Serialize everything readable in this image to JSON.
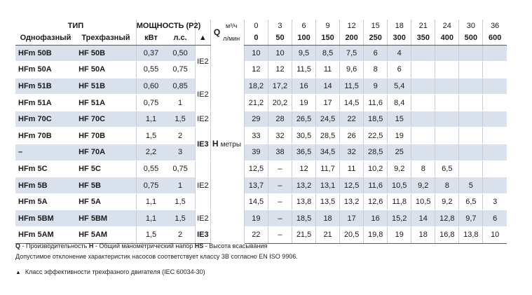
{
  "header": {
    "tip": "ТИП",
    "power": "МОЩНОСТЬ (P2)",
    "single_phase": "Однофазный",
    "three_phase": "Трехфазный",
    "kw": "кВт",
    "hp": "л.с.",
    "triangle": "▲",
    "q_letter": "Q",
    "q_unit_top": "м³/ч",
    "q_unit_bottom": "л/мин",
    "flow_m3h": [
      "0",
      "3",
      "6",
      "9",
      "12",
      "15",
      "18",
      "21",
      "24",
      "30",
      "36"
    ],
    "flow_lmin": [
      "0",
      "50",
      "100",
      "150",
      "200",
      "250",
      "300",
      "350",
      "400",
      "500",
      "600"
    ]
  },
  "h_label": {
    "letter": "H",
    "unit": "метры"
  },
  "rows": [
    {
      "single": "HFm 50B",
      "three": "HF 50B",
      "kw": "0,37",
      "hp": "0,50",
      "ie": "IE2",
      "ie_span": 2,
      "ie_bold": false,
      "values": [
        "10",
        "10",
        "9,5",
        "8,5",
        "7,5",
        "6",
        "4",
        "",
        "",
        "",
        ""
      ],
      "shaded": true
    },
    {
      "single": "HFm 50A",
      "three": "HF 50A",
      "kw": "0,55",
      "hp": "0,75",
      "ie": null,
      "values": [
        "12",
        "12",
        "11,5",
        "11",
        "9,6",
        "8",
        "6",
        "",
        "",
        "",
        ""
      ],
      "shaded": false
    },
    {
      "single": "HFm 51B",
      "three": "HF 51B",
      "kw": "0,60",
      "hp": "0,85",
      "ie": "IE2",
      "ie_span": 2,
      "ie_bold": false,
      "values": [
        "18,2",
        "17,2",
        "16",
        "14",
        "11,5",
        "9",
        "5,4",
        "",
        "",
        "",
        ""
      ],
      "shaded": true
    },
    {
      "single": "HFm 51A",
      "three": "HF 51A",
      "kw": "0,75",
      "hp": "1",
      "ie": null,
      "values": [
        "21,2",
        "20,2",
        "19",
        "17",
        "14,5",
        "11,6",
        "8,4",
        "",
        "",
        "",
        ""
      ],
      "shaded": false
    },
    {
      "single": "HFm 70C",
      "three": "HF 70C",
      "kw": "1,1",
      "hp": "1,5",
      "ie": "IE2",
      "ie_span": 1,
      "ie_bold": false,
      "values": [
        "29",
        "28",
        "26,5",
        "24,5",
        "22",
        "18,5",
        "15",
        "",
        "",
        "",
        ""
      ],
      "shaded": true
    },
    {
      "single": "HFm 70B",
      "three": "HF 70B",
      "kw": "1,5",
      "hp": "2",
      "ie": "IE3",
      "ie_span": 2,
      "ie_bold": true,
      "values": [
        "33",
        "32",
        "30,5",
        "28,5",
        "26",
        "22,5",
        "19",
        "",
        "",
        "",
        ""
      ],
      "shaded": false
    },
    {
      "single": "–",
      "three": "HF 70A",
      "kw": "2,2",
      "hp": "3",
      "ie": null,
      "values": [
        "39",
        "38",
        "36,5",
        "34,5",
        "32",
        "28,5",
        "25",
        "",
        "",
        "",
        ""
      ],
      "shaded": true
    },
    {
      "single": "HFm 5C",
      "three": "HF 5C",
      "kw": "0,55",
      "hp": "0,75",
      "ie": "IE2",
      "ie_span": 3,
      "ie_bold": false,
      "values": [
        "12,5",
        "–",
        "12",
        "11,7",
        "11",
        "10,2",
        "9,2",
        "8",
        "6,5",
        "",
        ""
      ],
      "shaded": false
    },
    {
      "single": "HFm 5B",
      "three": "HF 5B",
      "kw": "0,75",
      "hp": "1",
      "ie": null,
      "values": [
        "13,7",
        "–",
        "13,2",
        "13,1",
        "12,5",
        "11,6",
        "10,5",
        "9,2",
        "8",
        "5",
        ""
      ],
      "shaded": true
    },
    {
      "single": "HFm 5A",
      "three": "HF 5A",
      "kw": "1,1",
      "hp": "1,5",
      "ie": null,
      "values": [
        "14,5",
        "–",
        "13,8",
        "13,5",
        "13,2",
        "12,6",
        "11,8",
        "10,5",
        "9,2",
        "6,5",
        "3"
      ],
      "shaded": false
    },
    {
      "single": "HFm 5BM",
      "three": "HF 5BM",
      "kw": "1,1",
      "hp": "1,5",
      "ie": "IE2",
      "ie_span": 1,
      "ie_bold": false,
      "values": [
        "19",
        "–",
        "18,5",
        "18",
        "17",
        "16",
        "15,2",
        "14",
        "12,8",
        "9,7",
        "6"
      ],
      "shaded": true
    },
    {
      "single": "HFm 5AM",
      "three": "HF 5AM",
      "kw": "1,5",
      "hp": "2",
      "ie": "IE3",
      "ie_span": 1,
      "ie_bold": true,
      "values": [
        "22",
        "–",
        "21,5",
        "21",
        "20,5",
        "19,8",
        "19",
        "18",
        "16,8",
        "13,8",
        "10"
      ],
      "shaded": false
    }
  ],
  "notes": {
    "line1_q": "Q",
    "line1_q_text": " - Производительность   ",
    "line1_h": "H",
    "line1_h_text": " - Общий манометрический напор   ",
    "line1_hs": "HS",
    "line1_hs_text": " - Высота всасывания",
    "line2": "Допустимое отклонение характеристик насосов соответствует классу 3В согласно EN ISO 9906.",
    "line3_symbol": "▲",
    "line3": "Класс эффективности трехфазного двигателя (IEC 60034-30)"
  }
}
